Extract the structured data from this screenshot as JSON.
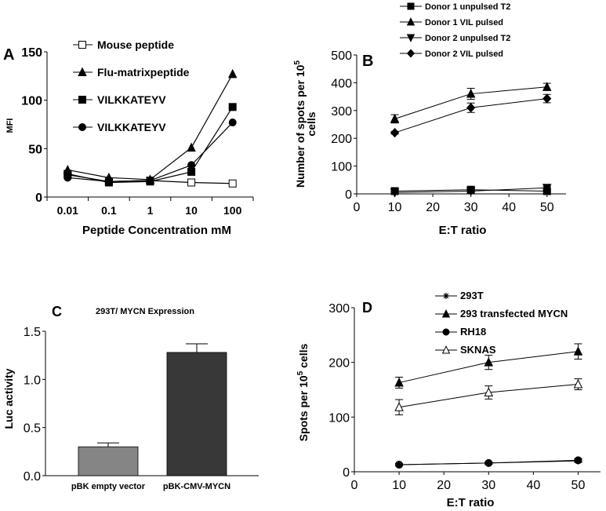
{
  "chart_data": [
    {
      "panel": "A",
      "type": "line",
      "xlabel": "Peptide Concentration mM",
      "ylabel": "MFI",
      "x_scale": "log",
      "categories": [
        "0.01",
        "0.1",
        "1",
        "10",
        "100"
      ],
      "ylim": [
        0,
        150
      ],
      "yticks": [
        "0",
        "50",
        "100",
        "150"
      ],
      "legend_position": "top-left",
      "series": [
        {
          "name": "Mouse peptide",
          "marker": "open-square",
          "values": [
            23,
            16,
            17,
            15,
            14
          ]
        },
        {
          "name": "Flu-matrixpeptide",
          "marker": "filled-triangle",
          "values": [
            28,
            20,
            18,
            51,
            127
          ]
        },
        {
          "name": "VILKKATEYV",
          "marker": "filled-square",
          "values": [
            24,
            15,
            16,
            26,
            93
          ]
        },
        {
          "name": "VILKKATEYV",
          "marker": "filled-circle",
          "values": [
            20,
            16,
            17,
            33,
            77
          ]
        }
      ]
    },
    {
      "panel": "B",
      "type": "line",
      "xlabel": "E:T ratio",
      "ylabel": "Number of spots per 10^5 cells",
      "ylabel_line1": "Number of spots per 10",
      "ylabel_sup": "5",
      "ylabel_line2": "cells",
      "x": [
        10,
        30,
        50
      ],
      "xlim": [
        0,
        55
      ],
      "xticks": [
        "0",
        "10",
        "20",
        "30",
        "40",
        "50"
      ],
      "ylim": [
        0,
        500
      ],
      "yticks": [
        "0",
        "100",
        "200",
        "300",
        "400",
        "500"
      ],
      "legend_position": "top",
      "series": [
        {
          "name": "Donor 1 unpulsed T2",
          "marker": "filled-square",
          "values": [
            10,
            15,
            10
          ],
          "errors": [
            3,
            3,
            3
          ]
        },
        {
          "name": "Donor 1 VIL pulsed",
          "marker": "filled-triangle",
          "values": [
            270,
            360,
            385
          ],
          "errors": [
            15,
            20,
            13
          ]
        },
        {
          "name": "Donor 2 unpulsed T2",
          "marker": "filled-triangle-down",
          "values": [
            5,
            10,
            22
          ],
          "errors": [
            2,
            3,
            5
          ]
        },
        {
          "name": "Donor 2 VIL pulsed",
          "marker": "filled-diamond",
          "values": [
            220,
            310,
            343
          ],
          "errors": [
            5,
            17,
            15
          ]
        }
      ]
    },
    {
      "panel": "C",
      "type": "bar",
      "title": "293T/ MYCN Expression",
      "ylabel": "Luc activity",
      "categories": [
        "pBK empty vector",
        "pBK-CMV-MYCN"
      ],
      "values": [
        0.3,
        1.28
      ],
      "errors": [
        0.04,
        0.09
      ],
      "colors": [
        "#858585",
        "#383838"
      ],
      "ylim": [
        0,
        1.5
      ],
      "yticks": [
        "0.0",
        "0.5",
        "1.0",
        "1.5"
      ]
    },
    {
      "panel": "D",
      "type": "line",
      "xlabel": "E:T ratio",
      "ylabel": "Spots per 10^5 cells",
      "ylabel_pre": "Spots per 10",
      "ylabel_sup": "5",
      "ylabel_post": " cells",
      "x": [
        10,
        30,
        50
      ],
      "xlim": [
        0,
        55
      ],
      "xticks": [
        "0",
        "10",
        "20",
        "30",
        "40",
        "50"
      ],
      "ylim": [
        0,
        300
      ],
      "yticks": [
        "0",
        "100",
        "200",
        "300"
      ],
      "legend_position": "top-right",
      "series": [
        {
          "name": "293T",
          "marker": "asterisk",
          "values": [
            13,
            16,
            20
          ],
          "errors": [
            2,
            2,
            3
          ]
        },
        {
          "name": "293 transfected MYCN",
          "marker": "filled-triangle",
          "values": [
            163,
            200,
            220
          ],
          "errors": [
            10,
            13,
            14
          ]
        },
        {
          "name": "RH18",
          "marker": "filled-circle",
          "values": [
            13,
            16,
            21
          ],
          "errors": [
            2,
            2,
            3
          ]
        },
        {
          "name": "SKNAS",
          "marker": "open-triangle",
          "values": [
            118,
            145,
            160
          ],
          "errors": [
            14,
            12,
            10
          ]
        }
      ]
    }
  ]
}
